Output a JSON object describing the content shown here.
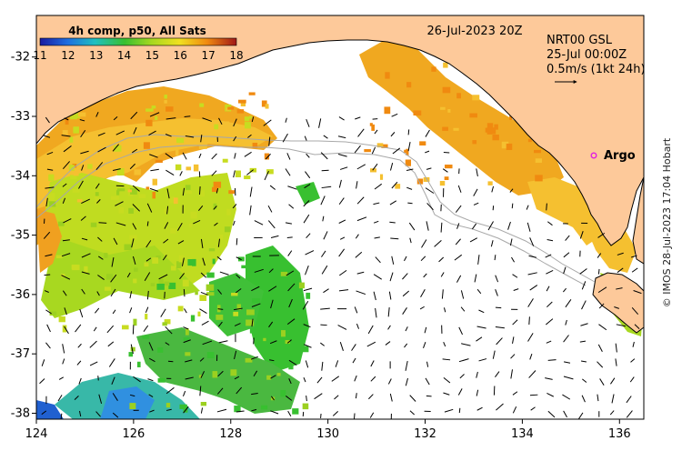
{
  "map": {
    "title_center": "26-Jul-2023 20Z",
    "colorbar": {
      "title": "4h comp, p50, All Sats",
      "ticks": [
        "11",
        "12",
        "13",
        "14",
        "15",
        "16",
        "17",
        "18"
      ],
      "range": [
        11,
        18
      ]
    },
    "current_info": {
      "line1": "NRT00 GSL",
      "line2": "25-Jul 00:00Z",
      "line3": "0.5m/s (1kt 24h)"
    },
    "marker": {
      "label": "Argo",
      "lon": 135.5,
      "lat": -33.6,
      "color": "#e020e0"
    },
    "x_axis": {
      "ticks": [
        "124",
        "126",
        "128",
        "130",
        "132",
        "134",
        "136"
      ],
      "range": [
        124,
        136.5
      ]
    },
    "y_axis": {
      "ticks": [
        "-32",
        "-33",
        "-34",
        "-35",
        "-36",
        "-37",
        "-38"
      ],
      "range": [
        -38.1,
        -31.3
      ]
    },
    "credit": "© IMOS 28-Jul-2023 17:04 Hobart",
    "colors": {
      "land": "#fdc99a",
      "coast": "#000000",
      "bathy": "#a8a8a8"
    }
  }
}
